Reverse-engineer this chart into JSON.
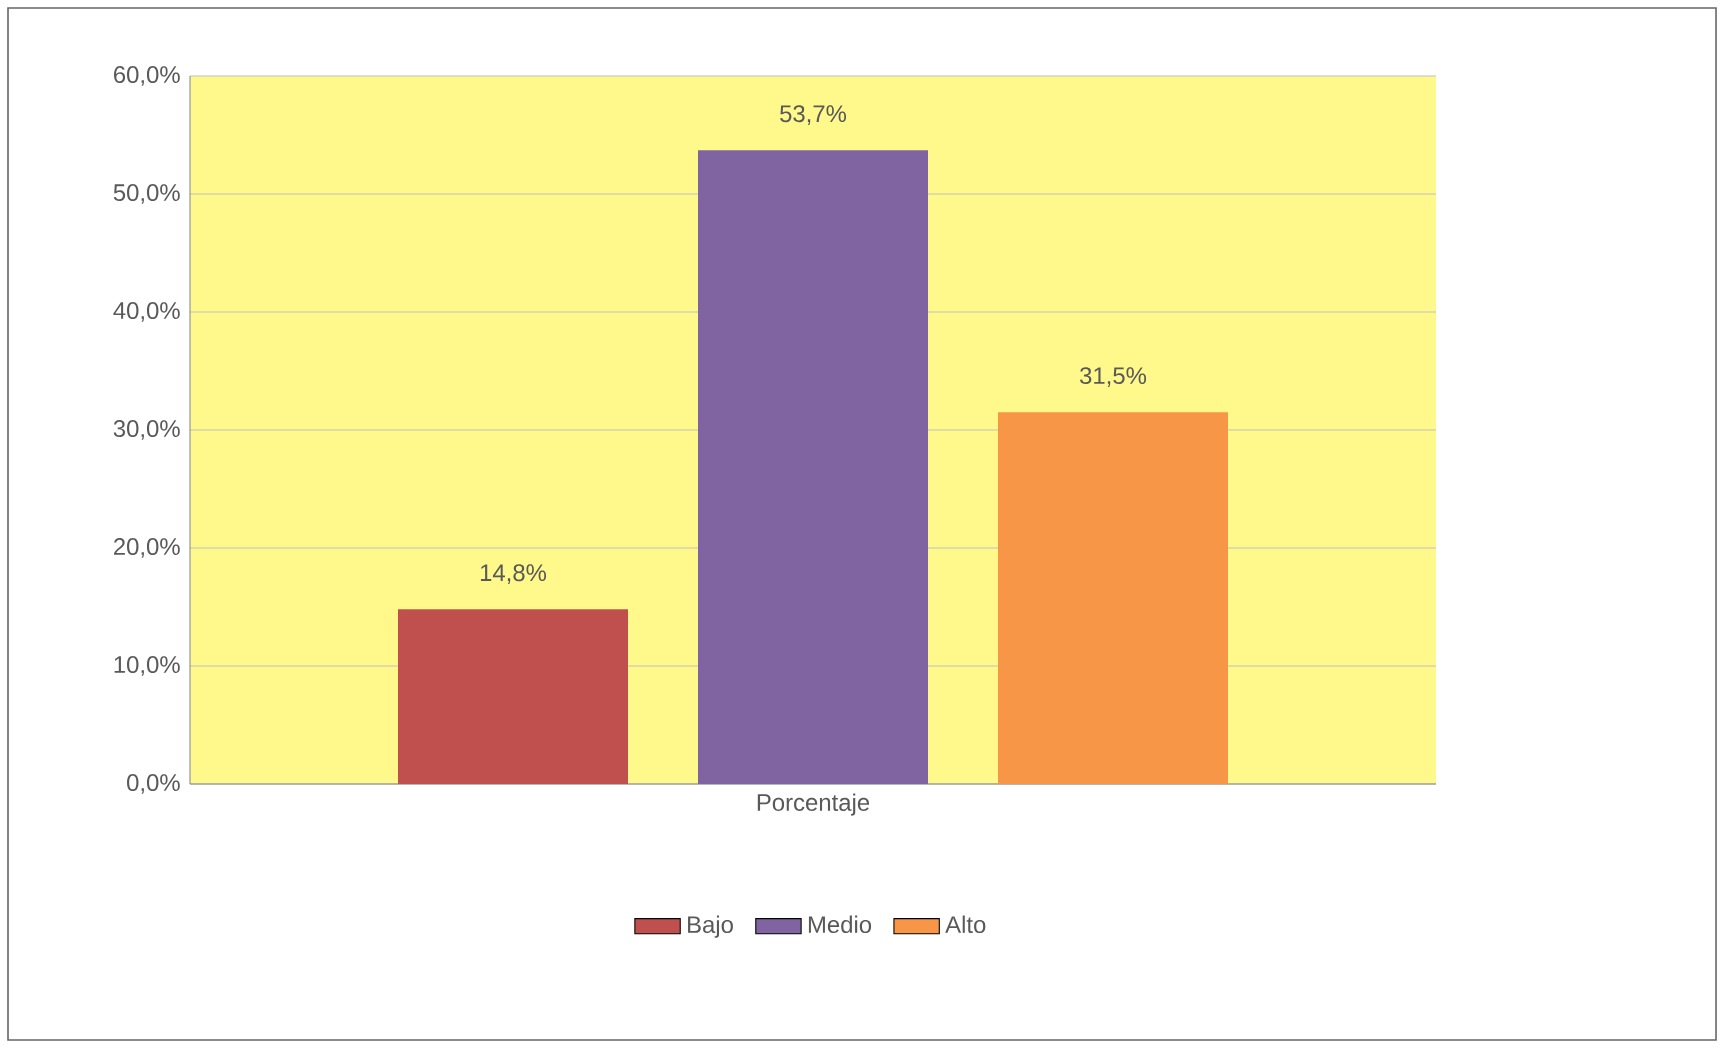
{
  "chart_data": {
    "type": "bar",
    "categories": [
      "Porcentaje"
    ],
    "series": [
      {
        "name": "Bajo",
        "color": "#c0504d",
        "values": [
          14.8
        ],
        "value_labels": [
          "14,8%"
        ]
      },
      {
        "name": "Medio",
        "color": "#8064a2",
        "values": [
          53.7
        ],
        "value_labels": [
          "53,7%"
        ]
      },
      {
        "name": "Alto",
        "color": "#f79646",
        "values": [
          31.5
        ],
        "value_labels": [
          "31,5%"
        ]
      }
    ],
    "ylim": [
      0,
      60
    ],
    "yticks": [
      {
        "value": 0,
        "label": "0,0%"
      },
      {
        "value": 10,
        "label": "10,0%"
      },
      {
        "value": 20,
        "label": "20,0%"
      },
      {
        "value": 30,
        "label": "30,0%"
      },
      {
        "value": 40,
        "label": "40,0%"
      },
      {
        "value": 50,
        "label": "50,0%"
      },
      {
        "value": 60,
        "label": "60,0%"
      }
    ],
    "grid": "y",
    "legend": "bottom"
  }
}
